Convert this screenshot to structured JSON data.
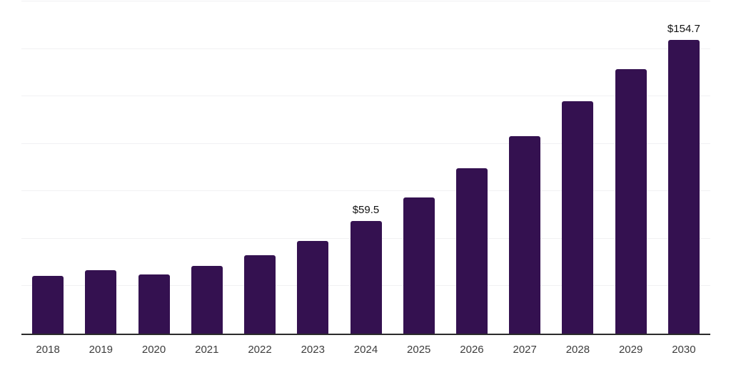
{
  "chart": {
    "background_color": "#ffffff",
    "bar_color": "#341150",
    "axis_line_color": "#2b2b2b",
    "gridline_color": "#f1f1f3",
    "tick_label_color": "#3d3d3d",
    "data_label_color": "#111111"
  },
  "chart_data": {
    "type": "bar",
    "title": "",
    "xlabel": "",
    "ylabel": "",
    "categories": [
      "2018",
      "2019",
      "2020",
      "2021",
      "2022",
      "2023",
      "2024",
      "2025",
      "2026",
      "2027",
      "2028",
      "2029",
      "2030"
    ],
    "values": [
      30.3,
      33.3,
      31.2,
      35.8,
      41.3,
      49.0,
      59.5,
      71.8,
      87.0,
      104.2,
      122.4,
      139.2,
      154.7
    ],
    "labels": [
      "",
      "",
      "",
      "",
      "",
      "",
      "$59.5",
      "",
      "",
      "",
      "",
      "",
      "$154.7"
    ],
    "ylim": [
      0,
      175
    ],
    "gridline_interval": 25,
    "grid": "horizontal",
    "y_tick_labels_visible": false,
    "legend_position": "none"
  }
}
